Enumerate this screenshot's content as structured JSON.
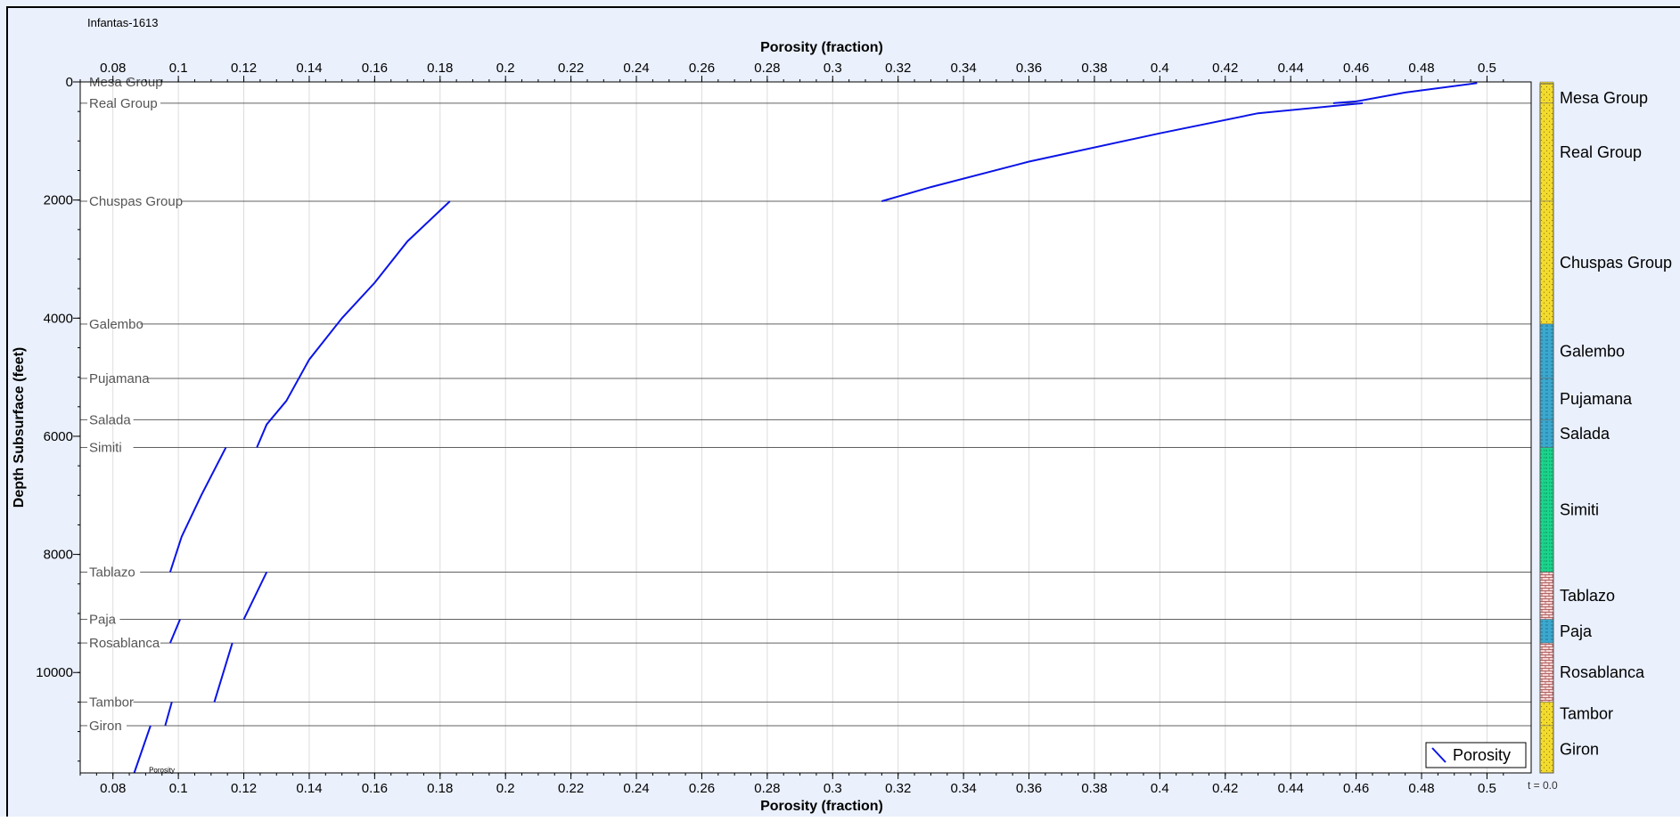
{
  "well_name": "Infantas-1613",
  "t_label": "t = 0.0",
  "colors": {
    "background": "#eaf0fc",
    "plot_area": "#ffffff",
    "curve": "#0a14e6",
    "grid": "#dcdcdc",
    "formation_line": "#606060"
  },
  "chart_data": {
    "type": "line",
    "title": "",
    "xlabel_top": "Porosity (fraction)",
    "xlabel_bottom": "Porosity (fraction)",
    "ylabel": "Depth Subsurface (feet)",
    "xlim": [
      0.07,
      0.5135
    ],
    "ylim": [
      11700,
      0
    ],
    "x_ticks": [
      0.08,
      0.1,
      0.12,
      0.14,
      0.16,
      0.18,
      0.2,
      0.22,
      0.24,
      0.26,
      0.28,
      0.3,
      0.32,
      0.34,
      0.36,
      0.38,
      0.4,
      0.42,
      0.44,
      0.46,
      0.48,
      0.5
    ],
    "x_tick_labels": [
      "0.08",
      "0.1",
      "0.12",
      "0.14",
      "0.16",
      "0.18",
      "0.2",
      "0.22",
      "0.24",
      "0.26",
      "0.28",
      "0.3",
      "0.32",
      "0.34",
      "0.36",
      "0.38",
      "0.4",
      "0.42",
      "0.44",
      "0.46",
      "0.48",
      "0.5"
    ],
    "y_ticks": [
      0,
      2000,
      4000,
      6000,
      8000,
      10000
    ],
    "y_tick_labels": [
      "0",
      "2000",
      "4000",
      "6000",
      "8000",
      "10000"
    ],
    "grid": true,
    "legend": {
      "position": "bottom-right",
      "entries": [
        "Porosity"
      ]
    },
    "series": [
      {
        "name": "Porosity",
        "segments": [
          [
            [
              0.497,
              20
            ],
            [
              0.475,
              180
            ],
            [
              0.46,
              330
            ],
            [
              0.453,
              360
            ]
          ],
          [
            [
              0.462,
              360
            ],
            [
              0.43,
              530
            ],
            [
              0.4,
              870
            ],
            [
              0.36,
              1350
            ],
            [
              0.33,
              1780
            ],
            [
              0.315,
              2020
            ]
          ],
          [
            [
              0.183,
              2020
            ],
            [
              0.17,
              2700
            ],
            [
              0.16,
              3400
            ],
            [
              0.15,
              4000
            ],
            [
              0.14,
              4700
            ],
            [
              0.133,
              5400
            ],
            [
              0.127,
              5800
            ],
            [
              0.124,
              6190
            ]
          ],
          [
            [
              0.1145,
              6190
            ],
            [
              0.107,
              7000
            ],
            [
              0.101,
              7700
            ],
            [
              0.0975,
              8300
            ]
          ],
          [
            [
              0.127,
              8300
            ],
            [
              0.12,
              9100
            ]
          ],
          [
            [
              0.1005,
              9100
            ],
            [
              0.0975,
              9500
            ]
          ],
          [
            [
              0.1165,
              9500
            ],
            [
              0.111,
              10500
            ]
          ],
          [
            [
              0.098,
              10500
            ],
            [
              0.096,
              10900
            ]
          ],
          [
            [
              0.0915,
              10900
            ],
            [
              0.0865,
              11700
            ]
          ]
        ]
      }
    ],
    "annotations": [
      {
        "text": "Porosity",
        "x": 0.091,
        "y": 11560
      }
    ]
  },
  "formations": [
    {
      "name": "Mesa Group",
      "top": 0,
      "lithology": "sandstone",
      "color": "#f3db2d"
    },
    {
      "name": "Real Group",
      "top": 360,
      "lithology": "sandstone",
      "color": "#f3db2d"
    },
    {
      "name": "Chuspas Group",
      "top": 2020,
      "lithology": "sandstone",
      "color": "#f3db2d"
    },
    {
      "name": "Galembo",
      "top": 4100,
      "lithology": "shale",
      "color": "#3aa8cf"
    },
    {
      "name": "Pujamana",
      "top": 5020,
      "lithology": "shale",
      "color": "#3aa8cf"
    },
    {
      "name": "Salada",
      "top": 5720,
      "lithology": "shale",
      "color": "#3aa8cf"
    },
    {
      "name": "Simiti",
      "top": 6190,
      "lithology": "siltstone",
      "color": "#1ad48c"
    },
    {
      "name": "Tablazo",
      "top": 8300,
      "lithology": "limestone",
      "color": "#f6d6d6"
    },
    {
      "name": "Paja",
      "top": 9100,
      "lithology": "shale",
      "color": "#3aa8cf"
    },
    {
      "name": "Rosablanca",
      "top": 9500,
      "lithology": "limestone",
      "color": "#f6d6d6"
    },
    {
      "name": "Tambor",
      "top": 10500,
      "lithology": "sandstone",
      "color": "#f3db2d"
    },
    {
      "name": "Giron",
      "top": 10900,
      "lithology": "sandstone",
      "color": "#f3db2d"
    }
  ]
}
